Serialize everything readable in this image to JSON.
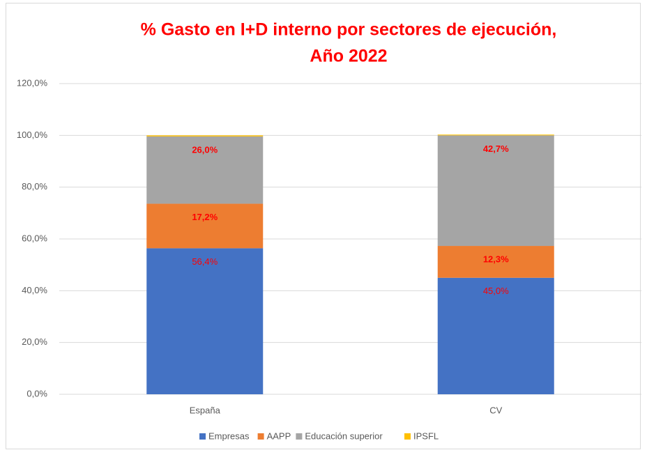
{
  "chart_data": {
    "type": "stacked_bar",
    "title": [
      "% Gasto en I+D interno por sectores de ejecución,",
      "Año 2022"
    ],
    "categories": [
      "España",
      "CV"
    ],
    "series": [
      {
        "name": "Empresas",
        "color": "#4472c4",
        "values": [
          56.4,
          45.0
        ],
        "value_labels": [
          "56,4%",
          "45,0%"
        ]
      },
      {
        "name": "AAPP",
        "color": "#ed7d31",
        "values": [
          17.2,
          12.3
        ],
        "value_labels": [
          "17,2%",
          "12,3%"
        ]
      },
      {
        "name": "Educación superior",
        "color": "#a5a5a5",
        "values": [
          26.0,
          42.7
        ],
        "value_labels": [
          "26,0%",
          "42,7%"
        ]
      },
      {
        "name": "IPSFL",
        "color": "#ffc000",
        "values": [
          0.4,
          0.3
        ]
      }
    ],
    "ylim": [
      0,
      120
    ],
    "yticks": [
      {
        "value": 0,
        "label": "0,0%"
      },
      {
        "value": 20,
        "label": "20,0%"
      },
      {
        "value": 40,
        "label": "40,0%"
      },
      {
        "value": 60,
        "label": "60,0%"
      },
      {
        "value": 80,
        "label": "80,0%"
      },
      {
        "value": 100,
        "label": "100,0%"
      },
      {
        "value": 120,
        "label": "120,0%"
      }
    ],
    "grid": true,
    "legend": "bottom"
  }
}
